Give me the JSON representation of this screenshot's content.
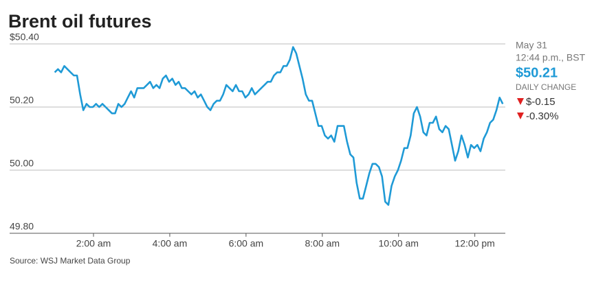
{
  "chart_data": {
    "type": "line",
    "title": "Brent oil futures",
    "x": [
      59,
      64,
      69,
      74,
      79,
      84,
      89,
      94,
      99,
      104,
      109,
      114,
      119,
      124,
      129,
      134,
      139,
      144,
      149,
      154,
      159,
      164,
      169,
      174,
      179,
      184,
      189,
      194,
      199,
      204,
      209,
      214,
      219,
      224,
      229,
      234,
      239,
      244,
      249,
      254,
      259,
      264,
      269,
      274,
      279,
      284,
      289,
      294,
      299,
      304,
      309,
      314,
      319,
      324,
      329,
      334,
      339,
      344,
      349,
      354,
      359,
      364,
      369,
      374,
      379,
      384,
      389,
      394,
      399,
      404,
      409,
      414,
      419,
      424,
      429,
      434,
      439,
      444,
      449,
      454,
      459,
      464,
      469,
      474,
      479,
      484,
      489,
      494,
      499,
      504,
      509,
      514,
      519,
      524,
      529,
      534,
      539,
      544,
      549,
      554,
      559,
      564,
      569,
      574,
      579,
      584,
      589,
      594,
      599,
      604,
      609,
      614,
      619,
      624,
      629,
      634,
      639,
      644,
      649,
      654,
      659,
      664,
      669,
      674,
      679,
      684,
      689,
      694,
      699,
      704,
      709,
      714,
      719,
      724,
      729,
      734,
      739,
      744,
      749,
      754,
      759,
      764
    ],
    "values": [
      50.31,
      50.32,
      50.31,
      50.33,
      50.32,
      50.31,
      50.3,
      50.3,
      50.24,
      50.19,
      50.21,
      50.2,
      50.2,
      50.21,
      50.2,
      50.21,
      50.2,
      50.19,
      50.18,
      50.18,
      50.21,
      50.2,
      50.21,
      50.23,
      50.25,
      50.23,
      50.26,
      50.26,
      50.26,
      50.27,
      50.28,
      50.26,
      50.27,
      50.26,
      50.29,
      50.3,
      50.28,
      50.29,
      50.27,
      50.28,
      50.26,
      50.26,
      50.25,
      50.24,
      50.25,
      50.23,
      50.24,
      50.22,
      50.2,
      50.19,
      50.21,
      50.22,
      50.22,
      50.24,
      50.27,
      50.26,
      50.25,
      50.27,
      50.25,
      50.25,
      50.23,
      50.24,
      50.26,
      50.24,
      50.25,
      50.26,
      50.27,
      50.28,
      50.28,
      50.3,
      50.31,
      50.31,
      50.33,
      50.33,
      50.35,
      50.39,
      50.37,
      50.33,
      50.29,
      50.24,
      50.22,
      50.22,
      50.18,
      50.14,
      50.14,
      50.11,
      50.1,
      50.11,
      50.09,
      50.14,
      50.14,
      50.14,
      50.09,
      50.05,
      50.04,
      49.96,
      49.91,
      49.91,
      49.95,
      49.99,
      50.02,
      50.02,
      50.01,
      49.98,
      49.9,
      49.89,
      49.95,
      49.98,
      50.0,
      50.03,
      50.07,
      50.07,
      50.11,
      50.18,
      50.2,
      50.17,
      50.12,
      50.11,
      50.15,
      50.15,
      50.17,
      50.13,
      50.12,
      50.14,
      50.13,
      50.08,
      50.03,
      50.06,
      50.11,
      50.08,
      50.04,
      50.08,
      50.07,
      50.08,
      50.06,
      50.1,
      50.12,
      50.15,
      50.16,
      50.19,
      50.23,
      50.21
    ],
    "color": "#1f9ad6",
    "xlim": [
      -12,
      768
    ],
    "xticks": [
      {
        "value": 120,
        "label": "2:00 am"
      },
      {
        "value": 240,
        "label": "4:00 am"
      },
      {
        "value": 360,
        "label": "6:00 am"
      },
      {
        "value": 480,
        "label": "8:00 am"
      },
      {
        "value": 600,
        "label": "10:00 am"
      },
      {
        "value": 720,
        "label": "12:00 pm"
      }
    ],
    "ylim": [
      49.8,
      50.4
    ],
    "yticks": [
      {
        "value": 49.8,
        "label": "49.80"
      },
      {
        "value": 50,
        "label": "50.00"
      },
      {
        "value": 50.2,
        "label": "50.20"
      },
      {
        "value": 50.4,
        "label": "$50.40"
      }
    ],
    "grid": true,
    "side_panel": {
      "date": "May 31",
      "time": "12:44 p.m., BST",
      "last_price": "$50.21",
      "change_label": "DAILY CHANGE",
      "change": "$-0.15",
      "change_pct": "-0.30%"
    },
    "source": "Source: WSJ Market Data Group"
  }
}
